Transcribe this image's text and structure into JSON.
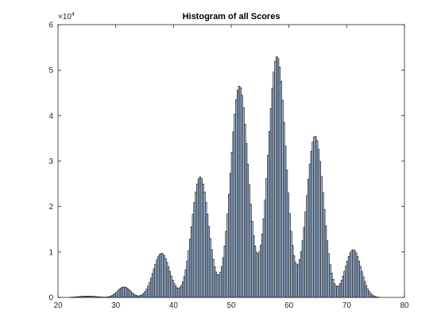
{
  "chart_data": {
    "type": "bar",
    "title": "Histogram of all Scores",
    "xlabel": "",
    "ylabel": "",
    "xlim": [
      20,
      80
    ],
    "ylim": [
      0,
      60000
    ],
    "y_exponent_label": "×10",
    "y_exponent_power": "4",
    "x_tick_labels": [
      "20",
      "30",
      "40",
      "50",
      "60",
      "70",
      "80"
    ],
    "y_tick_labels": [
      "0",
      "1",
      "2",
      "3",
      "4",
      "5",
      "6"
    ],
    "bar_fill_color": "#aec7e8",
    "bar_edge_color": "#000000",
    "bin_width": 0.25,
    "peaks": [
      {
        "center": 31.3,
        "height": 2300,
        "sigma": 1.1
      },
      {
        "center": 37.8,
        "height": 9700,
        "sigma": 1.4
      },
      {
        "center": 44.5,
        "height": 26500,
        "sigma": 1.45
      },
      {
        "center": 51.3,
        "height": 46500,
        "sigma": 1.5
      },
      {
        "center": 57.8,
        "height": 53000,
        "sigma": 1.5
      },
      {
        "center": 64.4,
        "height": 35500,
        "sigma": 1.45
      },
      {
        "center": 71.0,
        "height": 10500,
        "sigma": 1.35
      },
      {
        "center": 25.0,
        "height": 300,
        "sigma": 1.5
      }
    ]
  }
}
